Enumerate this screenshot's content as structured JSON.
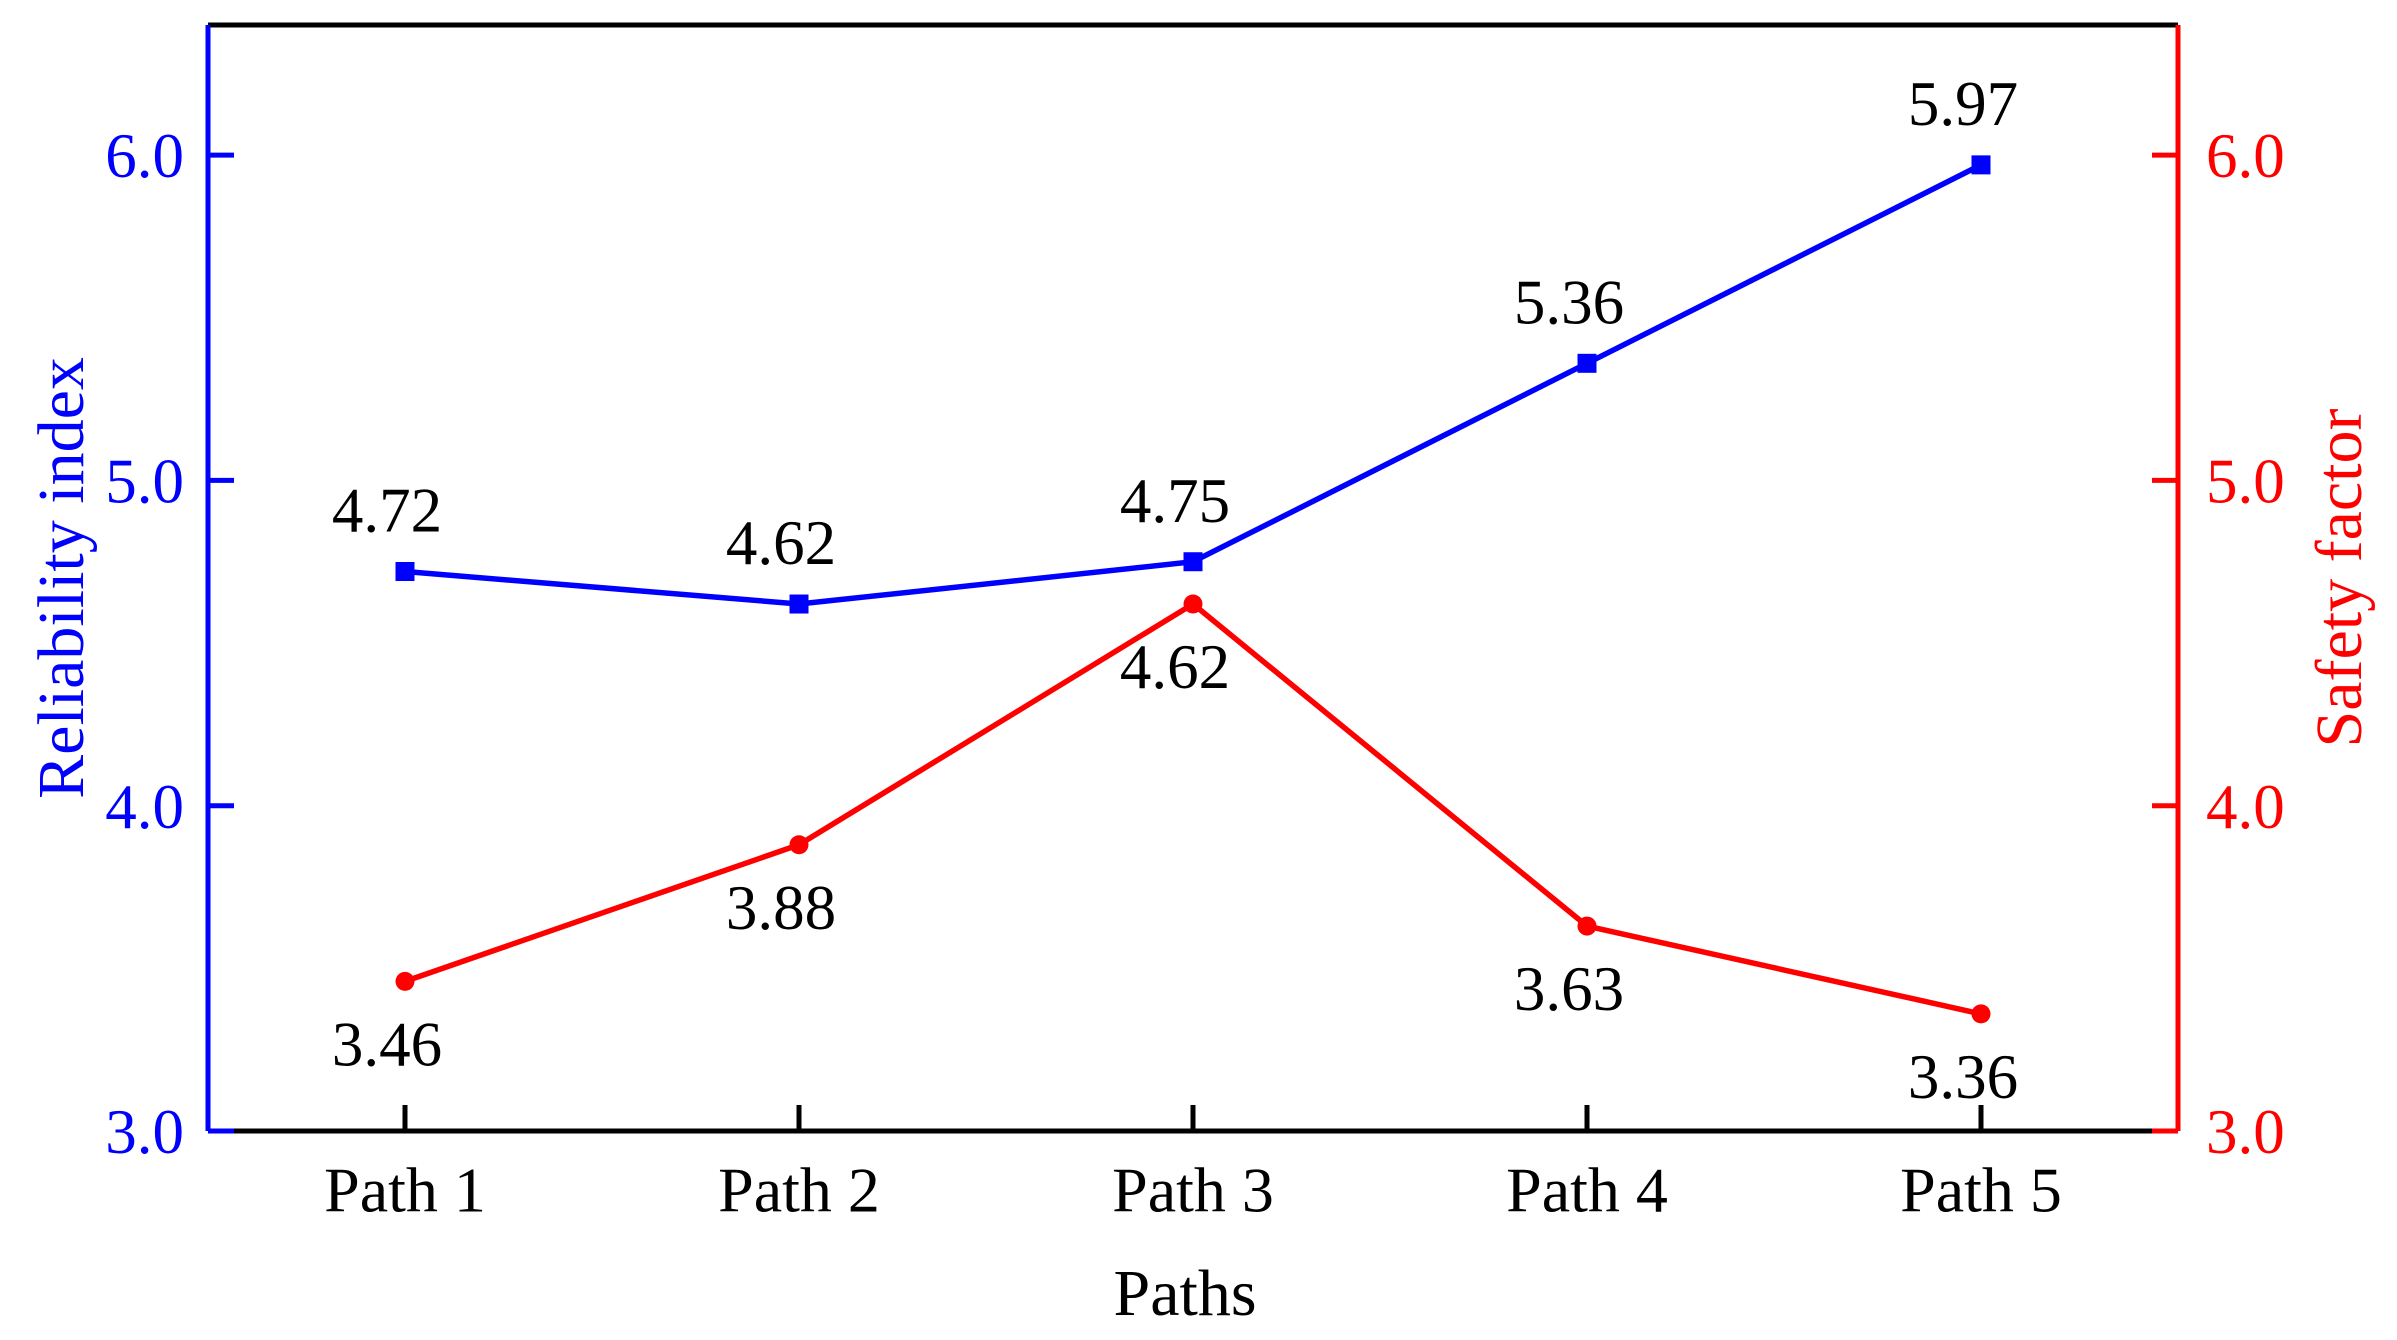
{
  "figure": {
    "background": "#ffffff"
  },
  "chart_data": {
    "type": "line",
    "categories": [
      "Path 1",
      "Path 2",
      "Path 3",
      "Path 4",
      "Path 5"
    ],
    "x_axis": {
      "title": "Paths",
      "color": "#000000",
      "tick_labels": [
        "Path 1",
        "Path 2",
        "Path 3",
        "Path 4",
        "Path 5"
      ]
    },
    "left_axis": {
      "title": "Reliability index",
      "color": "#0000ff",
      "ticks": [
        3.0,
        4.0,
        5.0,
        6.0
      ],
      "tick_labels": [
        "3.0",
        "4.0",
        "5.0",
        "6.0"
      ],
      "range": [
        3.0,
        6.4
      ]
    },
    "right_axis": {
      "title": "Safety factor",
      "color": "#ff0000",
      "ticks": [
        3.0,
        4.0,
        5.0,
        6.0
      ],
      "tick_labels": [
        "3.0",
        "4.0",
        "5.0",
        "6.0"
      ],
      "range": [
        3.0,
        6.4
      ]
    },
    "series": [
      {
        "name": "Reliability index",
        "axis": "left",
        "color": "#0000ff",
        "marker": "square",
        "values": [
          4.72,
          4.62,
          4.75,
          5.36,
          5.97
        ],
        "labels": [
          "4.72",
          "4.62",
          "4.75",
          "5.36",
          "5.97"
        ],
        "label_position": "above"
      },
      {
        "name": "Safety factor",
        "axis": "right",
        "color": "#ff0000",
        "marker": "circle",
        "values": [
          3.46,
          3.88,
          4.62,
          3.63,
          3.36
        ],
        "labels": [
          "3.46",
          "3.88",
          "4.62",
          "3.63",
          "3.36"
        ],
        "label_position": "below"
      }
    ],
    "value_label_color": "#000000",
    "grid": false,
    "legend": "none"
  }
}
